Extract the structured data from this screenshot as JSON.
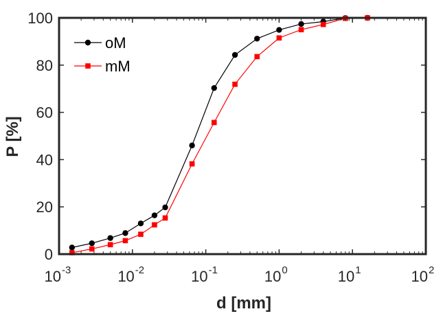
{
  "chart_data": {
    "type": "line",
    "x_scale": "log",
    "xlabel": "d [mm]",
    "ylabel": "P [%]",
    "xlim": [
      0.001,
      100
    ],
    "ylim": [
      0,
      100
    ],
    "x_ticks": [
      {
        "value": 0.001,
        "base": "10",
        "exp": "-3"
      },
      {
        "value": 0.01,
        "base": "10",
        "exp": "-2"
      },
      {
        "value": 0.1,
        "base": "10",
        "exp": "-1"
      },
      {
        "value": 1,
        "base": "10",
        "exp": "0"
      },
      {
        "value": 10,
        "base": "10",
        "exp": "1"
      },
      {
        "value": 100,
        "base": "10",
        "exp": "2"
      }
    ],
    "y_ticks": [
      {
        "value": 0,
        "label": "0"
      },
      {
        "value": 20,
        "label": "20"
      },
      {
        "value": 40,
        "label": "40"
      },
      {
        "value": 60,
        "label": "60"
      },
      {
        "value": 80,
        "label": "80"
      },
      {
        "value": 100,
        "label": "100"
      }
    ],
    "legend_position": "top-left",
    "series": [
      {
        "name": "oM",
        "color": "#000000",
        "marker": "circle",
        "x": [
          0.0015,
          0.0028,
          0.005,
          0.008,
          0.013,
          0.02,
          0.028,
          0.065,
          0.13,
          0.25,
          0.5,
          1,
          2,
          4,
          8,
          16
        ],
        "y": [
          2.8,
          4.6,
          6.8,
          8.9,
          13.0,
          16.4,
          19.8,
          46.0,
          70.3,
          84.3,
          91.2,
          94.9,
          97.4,
          98.4,
          99.9,
          100
        ]
      },
      {
        "name": "mM",
        "color": "#ff0000",
        "marker": "square",
        "x": [
          0.0015,
          0.0028,
          0.005,
          0.008,
          0.013,
          0.02,
          0.028,
          0.065,
          0.13,
          0.25,
          0.5,
          1,
          2,
          4,
          8,
          16
        ],
        "y": [
          0.6,
          2.2,
          4.0,
          5.7,
          8.4,
          12.4,
          15.3,
          38.2,
          55.7,
          71.9,
          83.6,
          91.5,
          95.0,
          97.2,
          99.8,
          100
        ]
      }
    ]
  }
}
